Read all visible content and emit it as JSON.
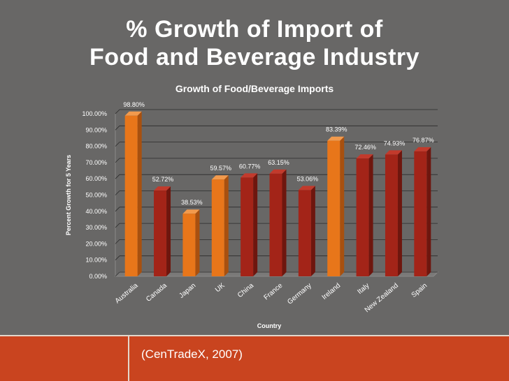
{
  "slide": {
    "title_line1": "% Growth of Import of",
    "title_line2": "Food and Beverage Industry",
    "citation": "(CenTradeX, 2007)"
  },
  "colors": {
    "background": "#686766",
    "footer": "#c9441f",
    "bar_highlight": "#e8761a",
    "bar_default": "#a32418",
    "text": "#ffffff"
  },
  "chart_data": {
    "type": "bar",
    "title": "Growth of Food/Beverage Imports",
    "xlabel": "Country",
    "ylabel": "Percent Growth for 5 Years",
    "categories": [
      "Australia",
      "Canada",
      "Japan",
      "UK",
      "China",
      "France",
      "Germany",
      "Ireland",
      "Italy",
      "New Zealand",
      "Spain"
    ],
    "values": [
      98.8,
      52.72,
      38.53,
      59.57,
      60.77,
      63.15,
      53.06,
      83.39,
      72.46,
      74.93,
      76.87
    ],
    "value_labels": [
      "98.80%",
      "52.72%",
      "38.53%",
      "59.57%",
      "60.77%",
      "63.15%",
      "53.06%",
      "83.39%",
      "72.46%",
      "74.93%",
      "76.87%"
    ],
    "highlighted": [
      "Australia",
      "Japan",
      "UK",
      "Ireland"
    ],
    "ylim": [
      0,
      100
    ],
    "yticks": [
      0,
      10,
      20,
      30,
      40,
      50,
      60,
      70,
      80,
      90,
      100
    ],
    "ytick_labels": [
      "0.00%",
      "10.00%",
      "20.00%",
      "30.00%",
      "40.00%",
      "50.00%",
      "60.00%",
      "70.00%",
      "80.00%",
      "90.00%",
      "100.00%"
    ],
    "grid": true
  }
}
